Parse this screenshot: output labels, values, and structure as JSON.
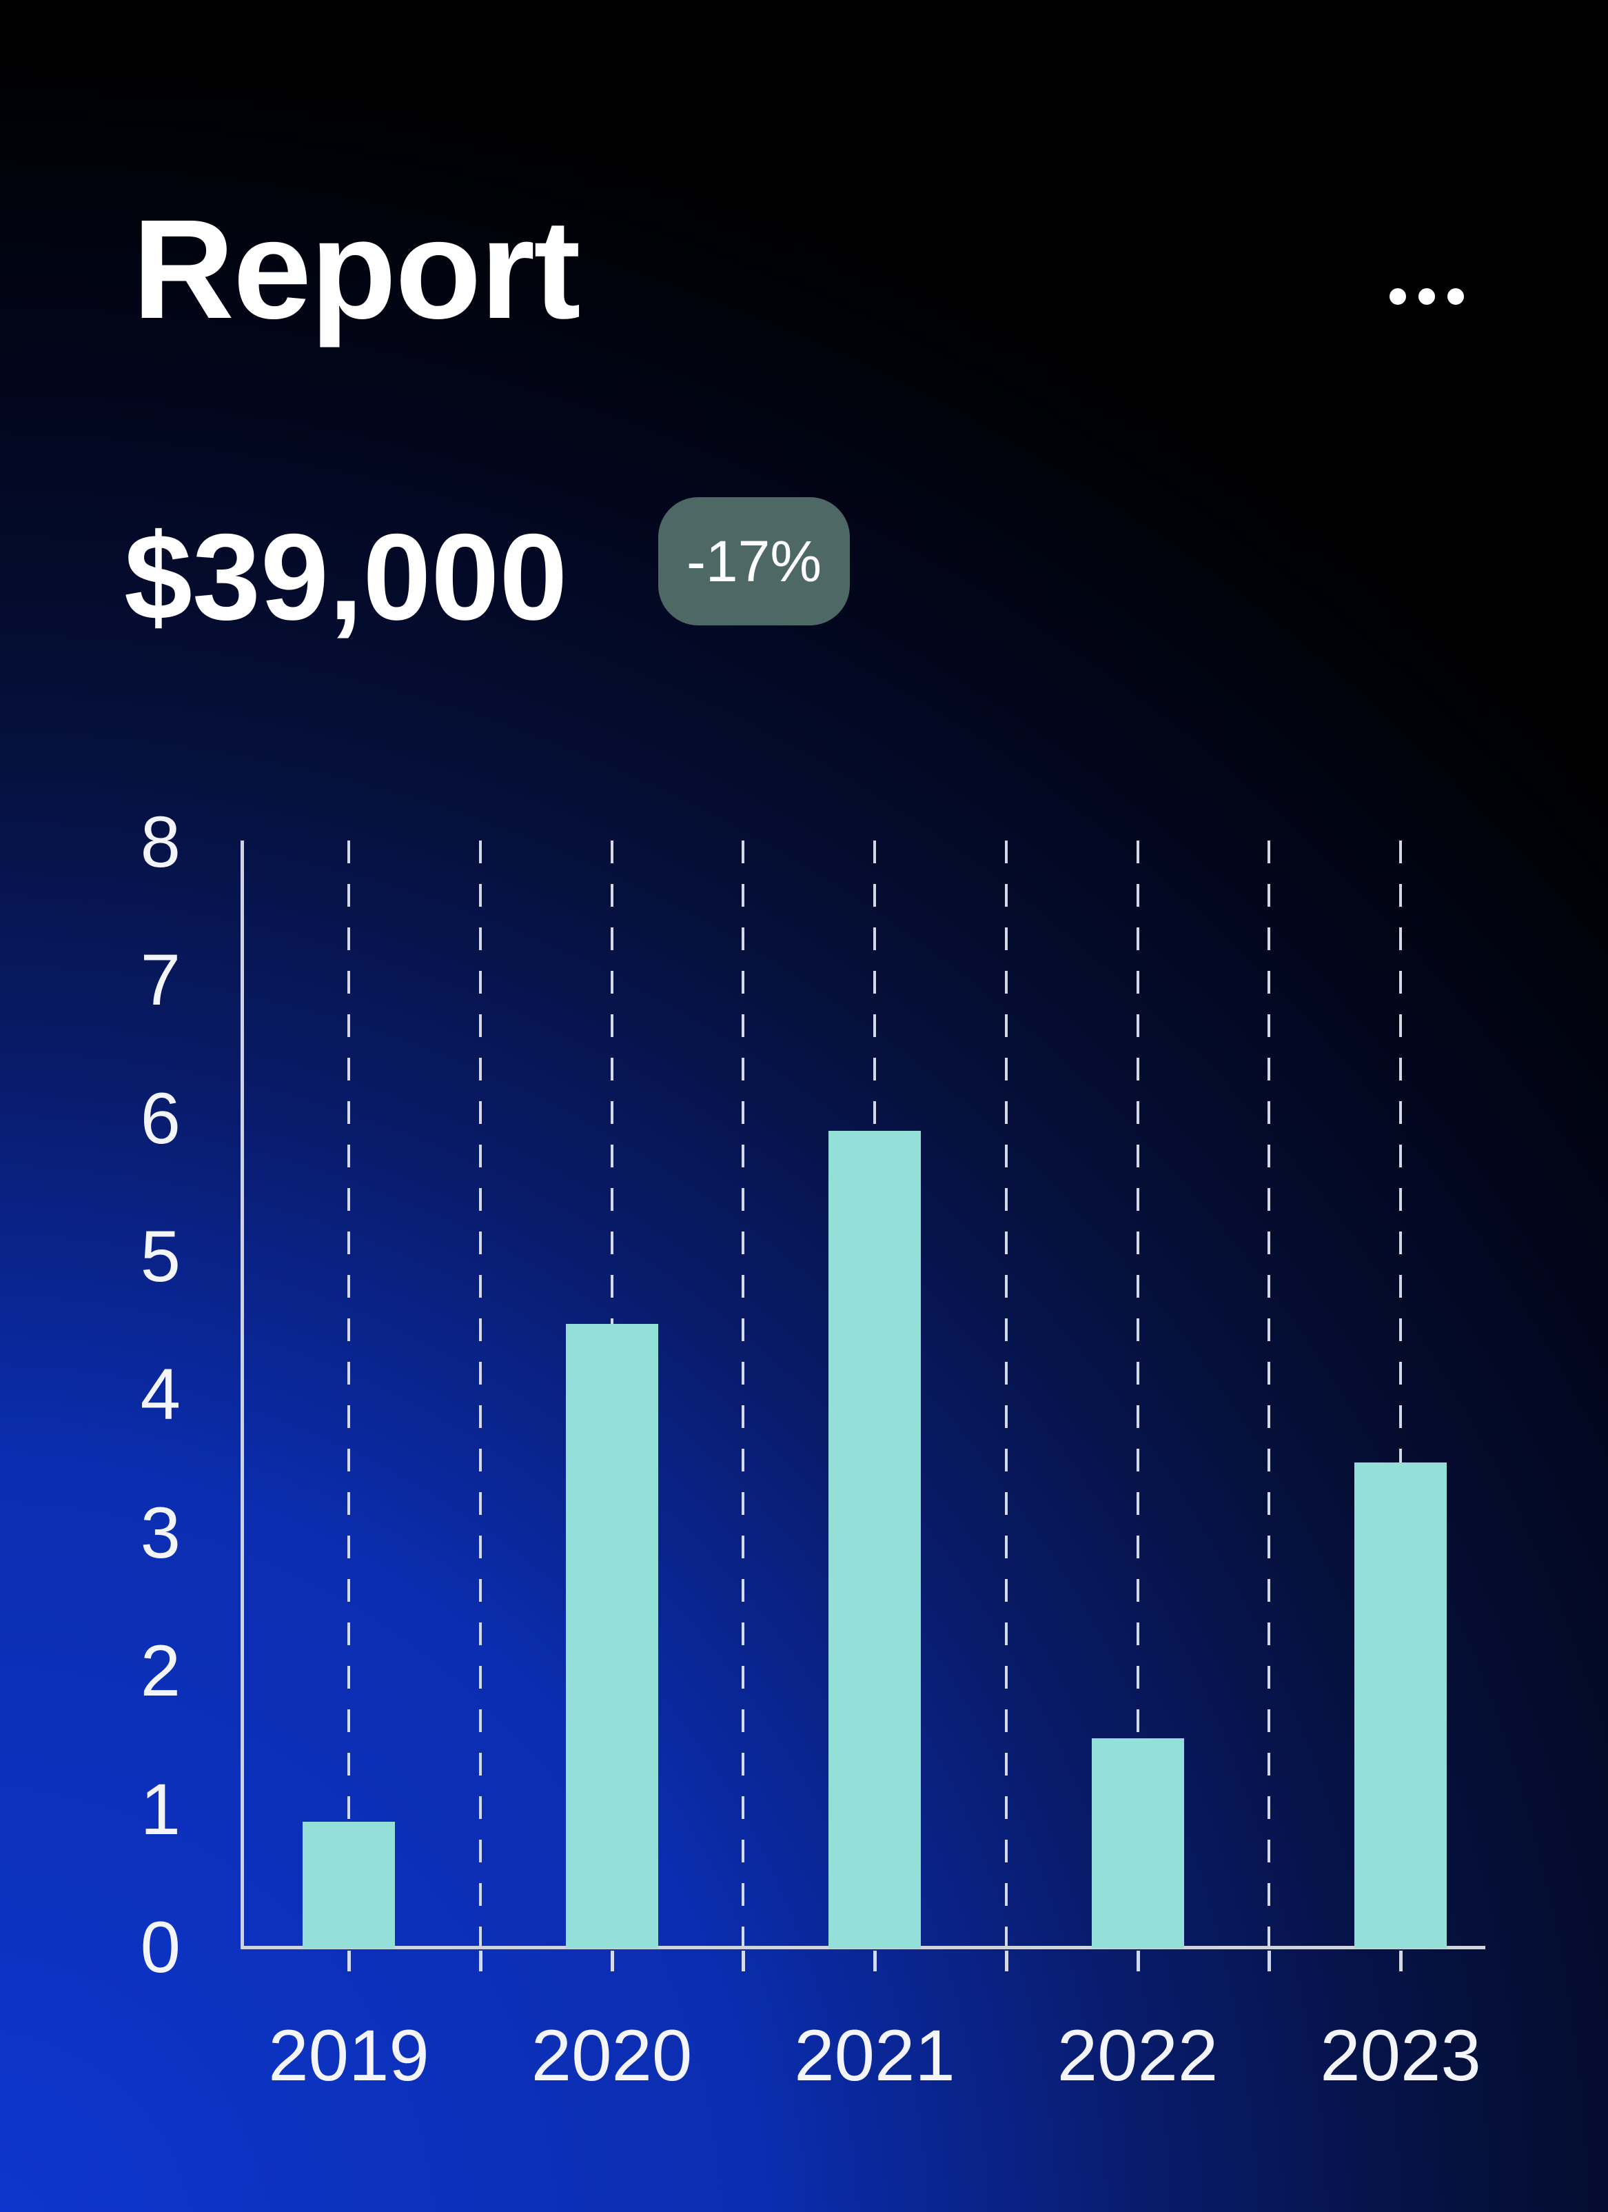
{
  "header": {
    "title": "Report"
  },
  "summary": {
    "value": "$39,000",
    "change_badge": "-17%"
  },
  "chart_data": {
    "type": "bar",
    "title": "",
    "xlabel": "",
    "ylabel": "",
    "categories": [
      "2019",
      "2020",
      "2021",
      "2022",
      "2023"
    ],
    "values": [
      0.9,
      4.5,
      5.9,
      1.5,
      3.5
    ],
    "y_ticks": [
      0,
      1,
      2,
      3,
      4,
      5,
      6,
      7,
      8
    ],
    "ylim": [
      0,
      8
    ],
    "grid": "vertical dashed lines at every half-year step",
    "legend": "none",
    "bar_color": "#94e0d9"
  },
  "colors": {
    "background_top": "#000000",
    "background_bottom_left": "#0e36cf",
    "bar": "#94e0d9",
    "badge_background": "#4d6865",
    "axis": "#cfd3de",
    "text": "#ffffff"
  }
}
